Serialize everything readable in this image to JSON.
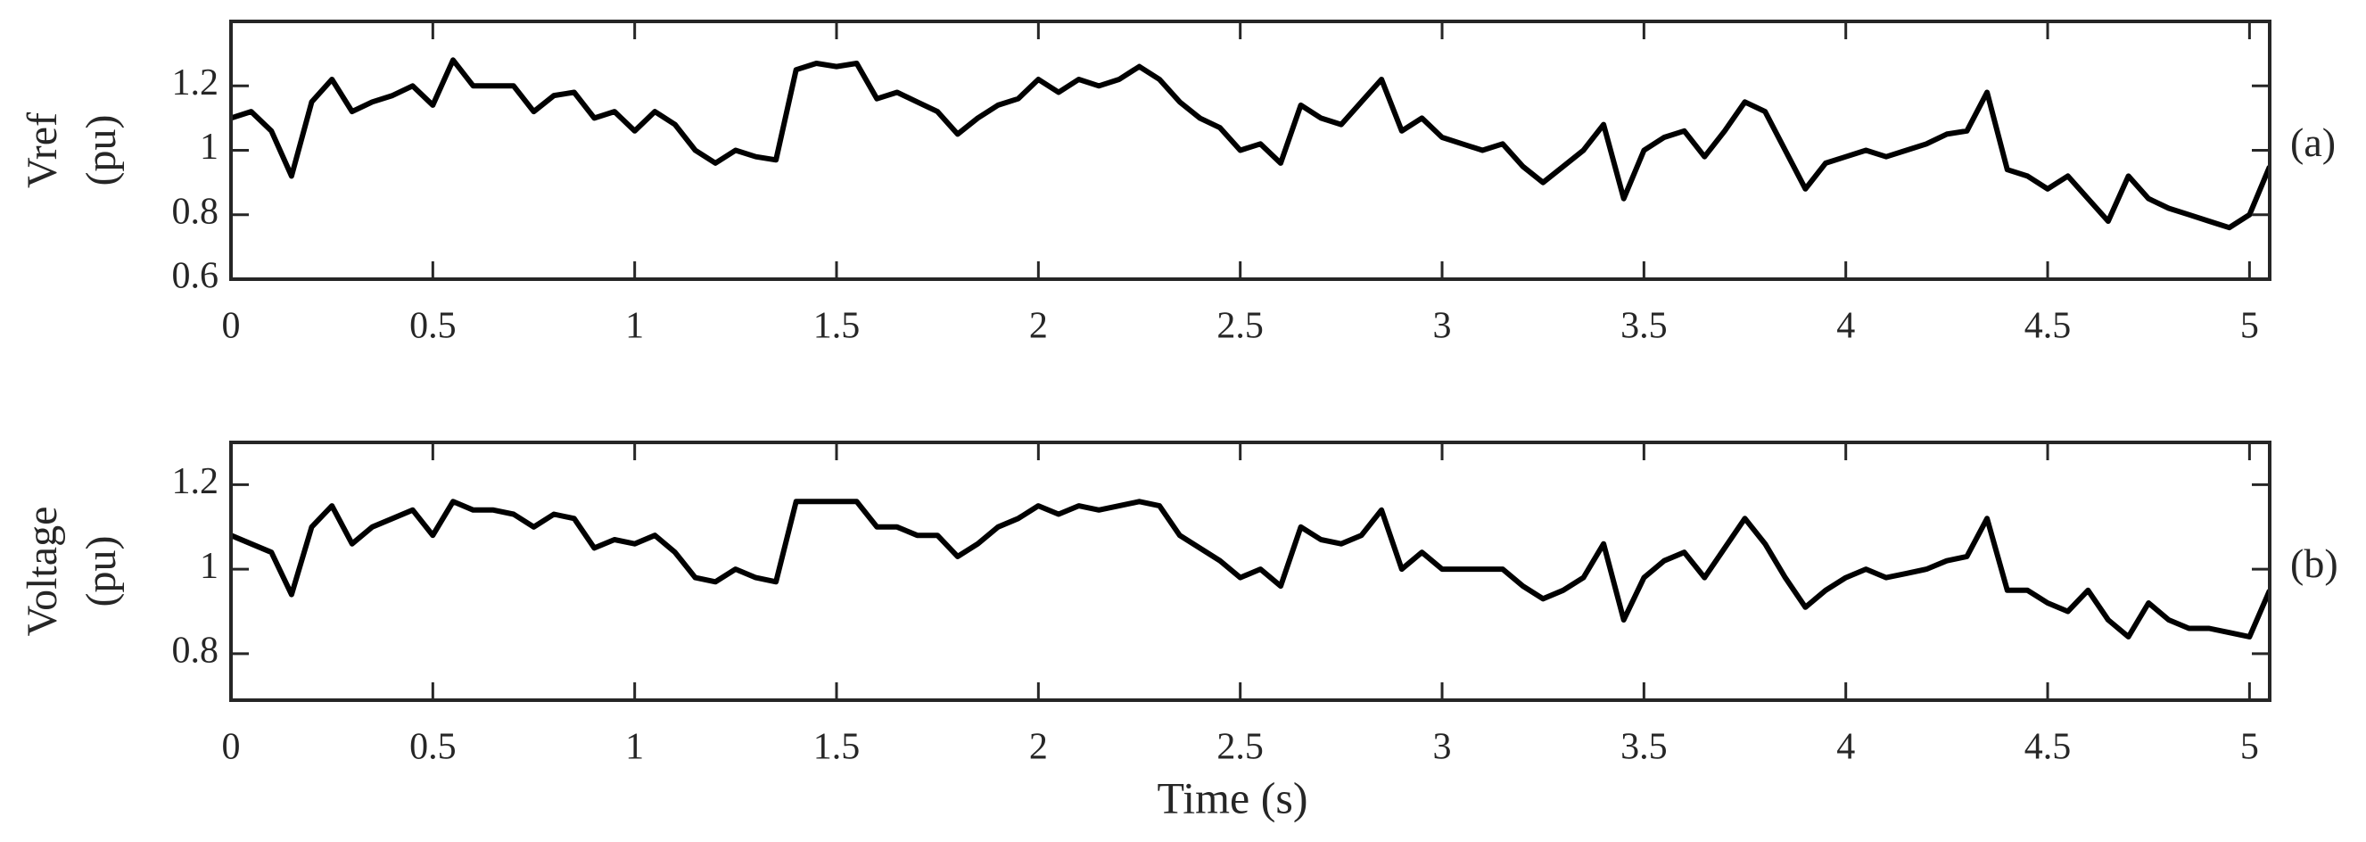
{
  "chart_data": [
    {
      "type": "line",
      "ylabel": [
        "Vref",
        "(pu)"
      ],
      "panel_label": "(a)",
      "x": [
        0,
        0.05,
        0.1,
        0.15,
        0.2,
        0.25,
        0.3,
        0.35,
        0.4,
        0.45,
        0.5,
        0.55,
        0.6,
        0.65,
        0.7,
        0.75,
        0.8,
        0.85,
        0.9,
        0.95,
        1,
        1.05,
        1.1,
        1.15,
        1.2,
        1.25,
        1.3,
        1.35,
        1.4,
        1.45,
        1.5,
        1.55,
        1.6,
        1.65,
        1.7,
        1.75,
        1.8,
        1.85,
        1.9,
        1.95,
        2,
        2.05,
        2.1,
        2.15,
        2.2,
        2.25,
        2.3,
        2.35,
        2.4,
        2.45,
        2.5,
        2.55,
        2.6,
        2.65,
        2.7,
        2.75,
        2.8,
        2.85,
        2.9,
        2.95,
        3,
        3.05,
        3.1,
        3.15,
        3.2,
        3.25,
        3.3,
        3.35,
        3.4,
        3.45,
        3.5,
        3.55,
        3.6,
        3.65,
        3.7,
        3.75,
        3.8,
        3.85,
        3.9,
        3.95,
        4,
        4.05,
        4.1,
        4.15,
        4.2,
        4.25,
        4.3,
        4.35,
        4.4,
        4.45,
        4.5,
        4.55,
        4.6,
        4.65,
        4.7,
        4.75,
        4.8,
        4.85,
        4.9,
        4.95,
        5,
        5.05
      ],
      "series": [
        {
          "color": "#000000",
          "values": [
            1.1,
            1.12,
            1.06,
            0.92,
            1.15,
            1.22,
            1.12,
            1.15,
            1.17,
            1.2,
            1.14,
            1.28,
            1.2,
            1.2,
            1.2,
            1.12,
            1.17,
            1.18,
            1.1,
            1.12,
            1.06,
            1.12,
            1.08,
            1.0,
            0.96,
            1.0,
            0.98,
            0.97,
            1.25,
            1.27,
            1.26,
            1.27,
            1.16,
            1.18,
            1.15,
            1.12,
            1.05,
            1.1,
            1.14,
            1.16,
            1.22,
            1.18,
            1.22,
            1.2,
            1.22,
            1.26,
            1.22,
            1.15,
            1.1,
            1.07,
            1.0,
            1.02,
            0.96,
            1.14,
            1.1,
            1.08,
            1.15,
            1.22,
            1.06,
            1.1,
            1.04,
            1.02,
            1.0,
            1.02,
            0.95,
            0.9,
            0.95,
            1.0,
            1.08,
            0.85,
            1.0,
            1.04,
            1.06,
            0.98,
            1.06,
            1.15,
            1.12,
            1.0,
            0.88,
            0.96,
            0.98,
            1.0,
            0.98,
            1.0,
            1.02,
            1.05,
            1.06,
            1.18,
            0.94,
            0.92,
            0.88,
            0.92,
            0.85,
            0.78,
            0.92,
            0.85,
            0.82,
            0.8,
            0.78,
            0.76,
            0.8,
            0.95
          ]
        }
      ],
      "xlim": [
        0,
        5.05
      ],
      "xticks": [
        0,
        0.5,
        1,
        1.5,
        2,
        2.5,
        3,
        3.5,
        4,
        4.5,
        5
      ],
      "ylim": [
        0.6,
        1.4
      ],
      "yticks": [
        0.6,
        0.8,
        1,
        1.2
      ]
    },
    {
      "type": "line",
      "ylabel": [
        "Voltage",
        "(pu)"
      ],
      "panel_label": "(b)",
      "xlabel": "Time (s)",
      "x": [
        0,
        0.05,
        0.1,
        0.15,
        0.2,
        0.25,
        0.3,
        0.35,
        0.4,
        0.45,
        0.5,
        0.55,
        0.6,
        0.65,
        0.7,
        0.75,
        0.8,
        0.85,
        0.9,
        0.95,
        1,
        1.05,
        1.1,
        1.15,
        1.2,
        1.25,
        1.3,
        1.35,
        1.4,
        1.45,
        1.5,
        1.55,
        1.6,
        1.65,
        1.7,
        1.75,
        1.8,
        1.85,
        1.9,
        1.95,
        2,
        2.05,
        2.1,
        2.15,
        2.2,
        2.25,
        2.3,
        2.35,
        2.4,
        2.45,
        2.5,
        2.55,
        2.6,
        2.65,
        2.7,
        2.75,
        2.8,
        2.85,
        2.9,
        2.95,
        3,
        3.05,
        3.1,
        3.15,
        3.2,
        3.25,
        3.3,
        3.35,
        3.4,
        3.45,
        3.5,
        3.55,
        3.6,
        3.65,
        3.7,
        3.75,
        3.8,
        3.85,
        3.9,
        3.95,
        4,
        4.05,
        4.1,
        4.15,
        4.2,
        4.25,
        4.3,
        4.35,
        4.4,
        4.45,
        4.5,
        4.55,
        4.6,
        4.65,
        4.7,
        4.75,
        4.8,
        4.85,
        4.9,
        4.95,
        5,
        5.05
      ],
      "series": [
        {
          "color": "#000000",
          "values": [
            1.08,
            1.06,
            1.04,
            0.94,
            1.1,
            1.15,
            1.06,
            1.1,
            1.12,
            1.14,
            1.08,
            1.16,
            1.14,
            1.14,
            1.13,
            1.1,
            1.13,
            1.12,
            1.05,
            1.07,
            1.06,
            1.08,
            1.04,
            0.98,
            0.97,
            1.0,
            0.98,
            0.97,
            1.16,
            1.16,
            1.16,
            1.16,
            1.1,
            1.1,
            1.08,
            1.08,
            1.03,
            1.06,
            1.1,
            1.12,
            1.15,
            1.13,
            1.15,
            1.14,
            1.15,
            1.16,
            1.15,
            1.08,
            1.05,
            1.02,
            0.98,
            1.0,
            0.96,
            1.1,
            1.07,
            1.06,
            1.08,
            1.14,
            1.0,
            1.04,
            1.0,
            1.0,
            1.0,
            1.0,
            0.96,
            0.93,
            0.95,
            0.98,
            1.06,
            0.88,
            0.98,
            1.02,
            1.04,
            0.98,
            1.05,
            1.12,
            1.06,
            0.98,
            0.91,
            0.95,
            0.98,
            1.0,
            0.98,
            0.99,
            1.0,
            1.02,
            1.03,
            1.12,
            0.95,
            0.95,
            0.92,
            0.9,
            0.95,
            0.88,
            0.84,
            0.92,
            0.88,
            0.86,
            0.86,
            0.85,
            0.84,
            0.95
          ]
        }
      ],
      "xlim": [
        0,
        5.05
      ],
      "xticks": [
        0,
        0.5,
        1,
        1.5,
        2,
        2.5,
        3,
        3.5,
        4,
        4.5,
        5
      ],
      "ylim": [
        0.69,
        1.3
      ],
      "yticks": [
        0.8,
        1,
        1.2
      ]
    }
  ]
}
